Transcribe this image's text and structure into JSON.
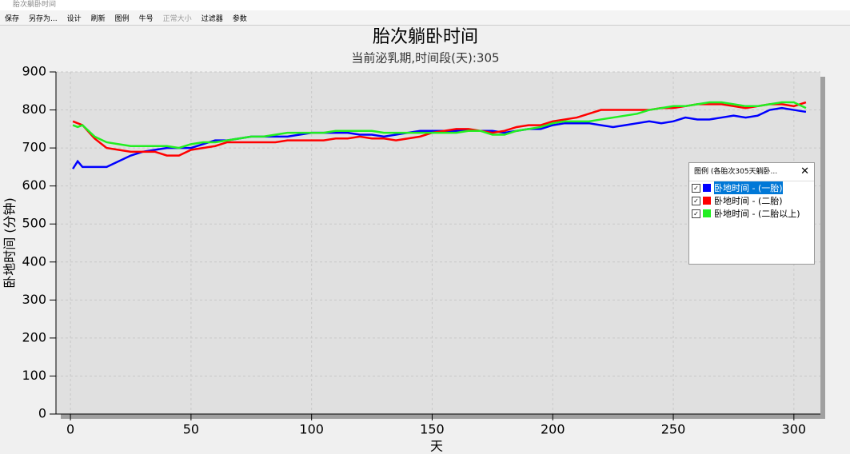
{
  "window": {
    "title": "胎次躺卧时间"
  },
  "toolbar": {
    "buttons": [
      "保存",
      "另存为...",
      "设计",
      "刷新",
      "图例",
      "牛号",
      "正常大小",
      "过滤器",
      "参数"
    ]
  },
  "legend_panel": {
    "title": "图例 (各胎次305天躺卧..."
  },
  "chart_data": {
    "type": "line",
    "title": "胎次躺卧时间",
    "subtitle": "当前泌乳期,时间段(天):305",
    "x_label": "天",
    "y_label": "卧地时间 (分钟)",
    "grid": true,
    "xlim": [
      -6,
      311
    ],
    "ylim": [
      0,
      900
    ],
    "xticks": [
      0,
      50,
      100,
      150,
      200,
      250,
      300
    ],
    "yticks": [
      0,
      100,
      200,
      300,
      400,
      500,
      600,
      700,
      800,
      900
    ],
    "x": [
      1,
      3,
      5,
      10,
      15,
      20,
      25,
      30,
      35,
      40,
      45,
      50,
      55,
      60,
      65,
      70,
      75,
      80,
      85,
      90,
      95,
      100,
      105,
      110,
      115,
      120,
      125,
      130,
      135,
      140,
      145,
      150,
      155,
      160,
      165,
      170,
      175,
      180,
      185,
      190,
      195,
      200,
      205,
      210,
      215,
      220,
      225,
      230,
      235,
      240,
      245,
      250,
      255,
      260,
      265,
      270,
      275,
      280,
      285,
      290,
      295,
      300,
      305
    ],
    "series": [
      {
        "name": "卧地时间 - (一胎)",
        "color": "#0000ff",
        "values": [
          645,
          665,
          650,
          650,
          650,
          665,
          680,
          690,
          695,
          700,
          700,
          700,
          710,
          720,
          720,
          725,
          730,
          730,
          730,
          730,
          735,
          740,
          740,
          740,
          740,
          735,
          735,
          730,
          735,
          740,
          745,
          745,
          745,
          745,
          745,
          745,
          745,
          740,
          745,
          750,
          750,
          760,
          765,
          765,
          765,
          760,
          755,
          760,
          765,
          770,
          765,
          770,
          780,
          775,
          775,
          780,
          785,
          780,
          785,
          800,
          805,
          800,
          795
        ]
      },
      {
        "name": "卧地时间 - (二胎)",
        "color": "#ff0000",
        "values": [
          770,
          765,
          760,
          725,
          700,
          695,
          690,
          690,
          690,
          680,
          680,
          695,
          700,
          705,
          715,
          715,
          715,
          715,
          715,
          720,
          720,
          720,
          720,
          725,
          725,
          730,
          725,
          725,
          720,
          725,
          730,
          740,
          745,
          750,
          750,
          745,
          740,
          745,
          755,
          760,
          760,
          770,
          775,
          780,
          790,
          800,
          800,
          800,
          800,
          800,
          805,
          805,
          810,
          815,
          815,
          815,
          810,
          805,
          810,
          815,
          815,
          810,
          820
        ]
      },
      {
        "name": "卧地时间 - (二胎以上)",
        "color": "#22ee22",
        "values": [
          760,
          755,
          760,
          730,
          715,
          710,
          705,
          705,
          705,
          705,
          700,
          710,
          715,
          715,
          720,
          725,
          730,
          730,
          735,
          740,
          740,
          740,
          740,
          745,
          745,
          745,
          745,
          740,
          740,
          740,
          740,
          740,
          740,
          740,
          745,
          745,
          735,
          735,
          745,
          750,
          755,
          765,
          770,
          770,
          770,
          775,
          780,
          785,
          790,
          800,
          805,
          810,
          810,
          815,
          820,
          820,
          815,
          810,
          810,
          815,
          820,
          820,
          805
        ]
      }
    ]
  }
}
